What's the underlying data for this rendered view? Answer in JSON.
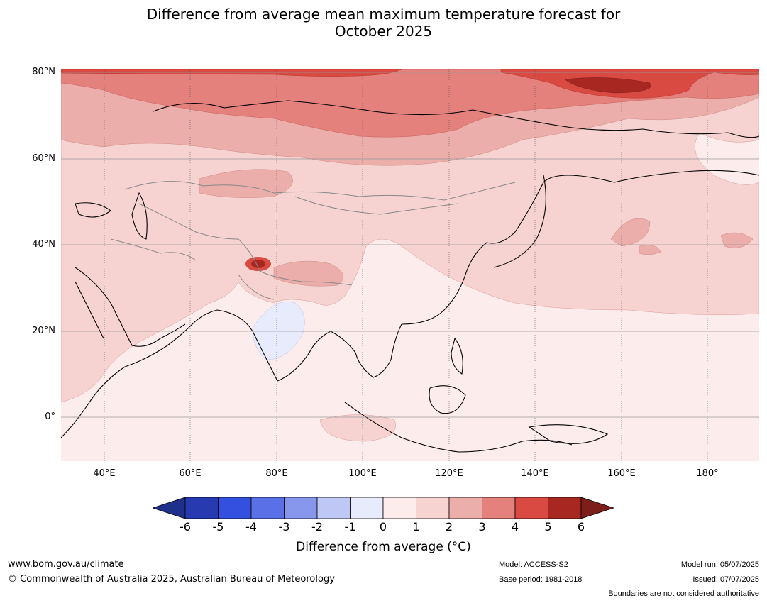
{
  "title_line1": "Difference from average mean maximum temperature forecast for",
  "title_line2": "October 2025",
  "map": {
    "lat_ticks": [
      "80°N",
      "60°N",
      "40°N",
      "20°N",
      "0°"
    ],
    "lon_ticks": [
      "40°E",
      "60°E",
      "80°E",
      "100°E",
      "120°E",
      "140°E",
      "160°E",
      "180°"
    ],
    "extent": {
      "lon_min": 30,
      "lon_max": 192,
      "lat_min": -10,
      "lat_max": 81
    }
  },
  "colorbar": {
    "ticks": [
      "-6",
      "-5",
      "-4",
      "-3",
      "-2",
      "-1",
      "0",
      "1",
      "2",
      "3",
      "4",
      "5",
      "6"
    ],
    "colors": [
      "#1f2f8c",
      "#283ab0",
      "#3350de",
      "#5a70e6",
      "#8697ec",
      "#bfc8f4",
      "#e7ebfb",
      "#fdecec",
      "#f6d3d1",
      "#ecaeab",
      "#e4817c",
      "#d94a42",
      "#a82821",
      "#7c1e1a"
    ],
    "label": "Difference from average (°C)"
  },
  "footer": {
    "website": "www.bom.gov.au/climate",
    "copyright": "© Commonwealth of Australia 2025, Australian Bureau of Meteorology",
    "model": "Model: ACCESS-S2",
    "base_period": "Base period: 1981-2018",
    "model_run": "Model run: 05/07/2025",
    "issued": "Issued: 07/07/2025",
    "disclaimer": "Boundaries are not considered authoritative"
  }
}
